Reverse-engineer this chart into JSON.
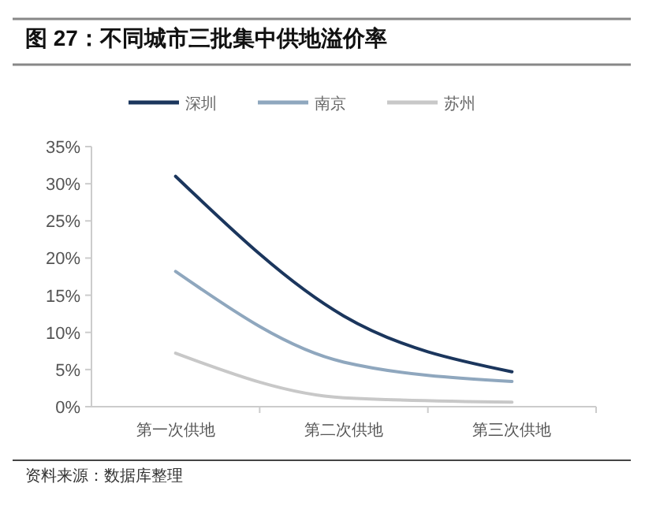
{
  "chart_data": {
    "type": "line",
    "title": "图 27：不同城市三批集中供地溢价率",
    "categories": [
      "第一次供地",
      "第二次供地",
      "第三次供地"
    ],
    "series": [
      {
        "name": "深圳",
        "color": "#1b365d",
        "values": [
          31,
          12.2,
          4.7
        ]
      },
      {
        "name": "南京",
        "color": "#8fa7be",
        "values": [
          18.2,
          6,
          3.4
        ]
      },
      {
        "name": "苏州",
        "color": "#c8c8c8",
        "values": [
          7.2,
          1.2,
          0.6
        ]
      }
    ],
    "ylim": [
      0,
      35
    ],
    "yticks": [
      {
        "value": 0,
        "label": "0%"
      },
      {
        "value": 5,
        "label": "5%"
      },
      {
        "value": 10,
        "label": "10%"
      },
      {
        "value": 15,
        "label": "15%"
      },
      {
        "value": 20,
        "label": "20%"
      },
      {
        "value": 25,
        "label": "25%"
      },
      {
        "value": 30,
        "label": "30%"
      },
      {
        "value": 35,
        "label": "35%"
      }
    ],
    "grid": false,
    "legend": "top",
    "marker": "none",
    "line_style": "solid",
    "annotations": [
      "资料来源：数据库整理"
    ]
  }
}
